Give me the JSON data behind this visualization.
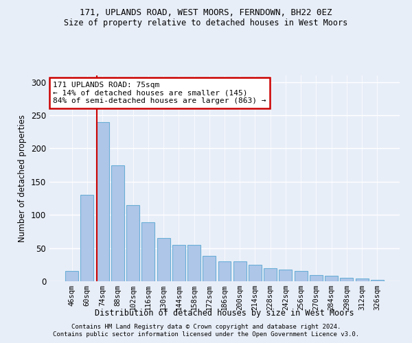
{
  "title1": "171, UPLANDS ROAD, WEST MOORS, FERNDOWN, BH22 0EZ",
  "title2": "Size of property relative to detached houses in West Moors",
  "xlabel": "Distribution of detached houses by size in West Moors",
  "ylabel": "Number of detached properties",
  "categories": [
    "46sqm",
    "60sqm",
    "74sqm",
    "88sqm",
    "102sqm",
    "116sqm",
    "130sqm",
    "144sqm",
    "158sqm",
    "172sqm",
    "186sqm",
    "200sqm",
    "214sqm",
    "228sqm",
    "242sqm",
    "256sqm",
    "270sqm",
    "284sqm",
    "298sqm",
    "312sqm",
    "326sqm"
  ],
  "values": [
    15,
    130,
    240,
    175,
    115,
    89,
    65,
    55,
    55,
    38,
    30,
    30,
    25,
    20,
    18,
    15,
    9,
    8,
    5,
    4,
    2
  ],
  "bar_color": "#aec6e8",
  "bar_edge_color": "#6aafd6",
  "vline_color": "#cc0000",
  "annotation_text": "171 UPLANDS ROAD: 75sqm\n← 14% of detached houses are smaller (145)\n84% of semi-detached houses are larger (863) →",
  "annotation_box_color": "white",
  "annotation_box_edge": "#cc0000",
  "footer1": "Contains HM Land Registry data © Crown copyright and database right 2024.",
  "footer2": "Contains public sector information licensed under the Open Government Licence v3.0.",
  "bg_color": "#e8eef8",
  "ylim": [
    0,
    310
  ],
  "yticks": [
    0,
    50,
    100,
    150,
    200,
    250,
    300
  ]
}
